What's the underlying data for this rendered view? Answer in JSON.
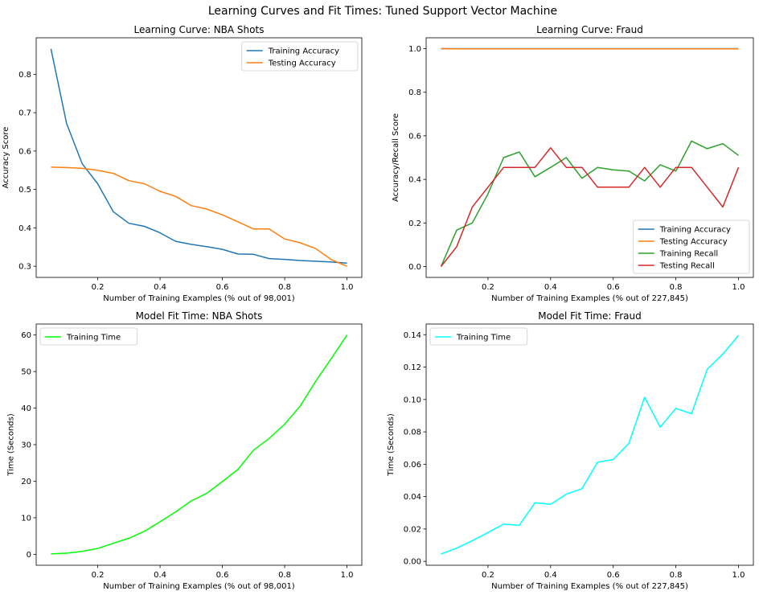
{
  "figure": {
    "title": "Learning Curves and Fit Times: Tuned Support Vector Machine"
  },
  "chart_data": [
    {
      "type": "line",
      "title": "Learning Curve: NBA Shots",
      "xlabel": "Number of Training Examples (% out of 98,001)",
      "ylabel": "Accuracy Score",
      "xlim": [
        0.0025,
        1.0475
      ],
      "ylim": [
        0.271,
        0.895
      ],
      "xticks": [
        0.2,
        0.4,
        0.6,
        0.8,
        1.0
      ],
      "xtick_labels": [
        "0.2",
        "0.4",
        "0.6",
        "0.8",
        "1.0"
      ],
      "yticks": [
        0.3,
        0.4,
        0.5,
        0.6,
        0.7,
        0.8
      ],
      "ytick_labels": [
        "0.3",
        "0.4",
        "0.5",
        "0.6",
        "0.7",
        "0.8"
      ],
      "legend": "upper right",
      "x": [
        0.05,
        0.1,
        0.15,
        0.2,
        0.25,
        0.3,
        0.35,
        0.4,
        0.45,
        0.5,
        0.55,
        0.6,
        0.65,
        0.7,
        0.75,
        0.8,
        0.85,
        0.9,
        0.95,
        1.0
      ],
      "series": [
        {
          "name": "Training Accuracy",
          "color": "#1f77b4",
          "values": [
            0.866,
            0.672,
            0.567,
            0.515,
            0.442,
            0.412,
            0.404,
            0.387,
            0.365,
            0.357,
            0.351,
            0.344,
            0.332,
            0.331,
            0.32,
            0.318,
            0.315,
            0.313,
            0.311,
            0.308
          ]
        },
        {
          "name": "Testing Accuracy",
          "color": "#ff7f0e",
          "values": [
            0.558,
            0.557,
            0.555,
            0.55,
            0.542,
            0.523,
            0.515,
            0.495,
            0.482,
            0.458,
            0.449,
            0.434,
            0.416,
            0.397,
            0.397,
            0.371,
            0.361,
            0.346,
            0.317,
            0.3
          ]
        }
      ]
    },
    {
      "type": "line",
      "title": "Learning Curve: Fraud",
      "xlabel": "Number of Training Examples (% out of 227,845)",
      "ylabel": "Accuracy/Recall Score",
      "xlim": [
        0.0025,
        1.0475
      ],
      "ylim": [
        -0.05,
        1.05
      ],
      "xticks": [
        0.2,
        0.4,
        0.6,
        0.8,
        1.0
      ],
      "xtick_labels": [
        "0.2",
        "0.4",
        "0.6",
        "0.8",
        "1.0"
      ],
      "yticks": [
        0.0,
        0.2,
        0.4,
        0.6,
        0.8,
        1.0
      ],
      "ytick_labels": [
        "0.0",
        "0.2",
        "0.4",
        "0.6",
        "0.8",
        "1.0"
      ],
      "legend": "lower right",
      "x": [
        0.05,
        0.1,
        0.15,
        0.2,
        0.25,
        0.3,
        0.35,
        0.4,
        0.45,
        0.5,
        0.55,
        0.6,
        0.65,
        0.7,
        0.75,
        0.8,
        0.85,
        0.9,
        0.95,
        1.0
      ],
      "series": [
        {
          "name": "Training Accuracy",
          "color": "#1f77b4",
          "values": [
            1.0,
            1.0,
            1.0,
            1.0,
            1.0,
            1.0,
            1.0,
            1.0,
            1.0,
            1.0,
            1.0,
            1.0,
            1.0,
            1.0,
            1.0,
            1.0,
            1.0,
            1.0,
            1.0,
            1.0
          ]
        },
        {
          "name": "Testing Accuracy",
          "color": "#ff7f0e",
          "values": [
            1.0,
            0.999,
            0.999,
            0.999,
            0.999,
            0.999,
            0.999,
            0.999,
            0.999,
            0.999,
            0.999,
            0.999,
            0.999,
            0.999,
            0.999,
            0.999,
            0.999,
            0.999,
            0.999,
            0.999
          ]
        },
        {
          "name": "Training Recall",
          "color": "#2ca02c",
          "values": [
            0.0,
            0.167,
            0.2,
            0.333,
            0.5,
            0.526,
            0.412,
            0.455,
            0.5,
            0.405,
            0.455,
            0.444,
            0.438,
            0.393,
            0.467,
            0.438,
            0.576,
            0.541,
            0.564,
            0.51
          ]
        },
        {
          "name": "Testing Recall",
          "color": "#d62728",
          "values": [
            0.0,
            0.091,
            0.273,
            0.364,
            0.455,
            0.455,
            0.455,
            0.545,
            0.455,
            0.455,
            0.364,
            0.364,
            0.364,
            0.455,
            0.364,
            0.455,
            0.455,
            0.364,
            0.273,
            0.455
          ]
        }
      ]
    },
    {
      "type": "line",
      "title": "Model Fit Time: NBA Shots",
      "xlabel": "Number of Training Examples (% out of 98,001)",
      "ylabel": "Time (Seconds)",
      "xlim": [
        0.0025,
        1.0475
      ],
      "ylim": [
        -3.0,
        63.0
      ],
      "xticks": [
        0.2,
        0.4,
        0.6,
        0.8,
        1.0
      ],
      "xtick_labels": [
        "0.2",
        "0.4",
        "0.6",
        "0.8",
        "1.0"
      ],
      "yticks": [
        0,
        10,
        20,
        30,
        40,
        50,
        60
      ],
      "ytick_labels": [
        "0",
        "10",
        "20",
        "30",
        "40",
        "50",
        "60"
      ],
      "legend": "upper left",
      "x": [
        0.05,
        0.1,
        0.15,
        0.2,
        0.25,
        0.3,
        0.35,
        0.4,
        0.45,
        0.5,
        0.55,
        0.6,
        0.65,
        0.7,
        0.75,
        0.8,
        0.85,
        0.9,
        0.95,
        1.0
      ],
      "series": [
        {
          "name": "Training Time",
          "color": "#00ff00",
          "values": [
            0.1,
            0.3,
            0.8,
            1.6,
            3.0,
            4.4,
            6.3,
            8.9,
            11.6,
            14.6,
            16.7,
            19.9,
            23.2,
            28.5,
            31.7,
            35.6,
            40.6,
            47.4,
            53.6,
            60.0
          ]
        }
      ]
    },
    {
      "type": "line",
      "title": "Model Fit Time: Fraud",
      "xlabel": "Number of Training Examples (% out of 227,845)",
      "ylabel": "Time (Seconds)",
      "xlim": [
        0.0025,
        1.0475
      ],
      "ylim": [
        -0.0024,
        0.1466
      ],
      "xticks": [
        0.2,
        0.4,
        0.6,
        0.8,
        1.0
      ],
      "xtick_labels": [
        "0.2",
        "0.4",
        "0.6",
        "0.8",
        "1.0"
      ],
      "yticks": [
        0.0,
        0.02,
        0.04,
        0.06,
        0.08,
        0.1,
        0.12,
        0.14
      ],
      "ytick_labels": [
        "0.00",
        "0.02",
        "0.04",
        "0.06",
        "0.08",
        "0.10",
        "0.12",
        "0.14"
      ],
      "legend": "upper left",
      "x": [
        0.05,
        0.1,
        0.15,
        0.2,
        0.25,
        0.3,
        0.35,
        0.4,
        0.45,
        0.5,
        0.55,
        0.6,
        0.65,
        0.7,
        0.75,
        0.8,
        0.85,
        0.9,
        0.95,
        1.0
      ],
      "series": [
        {
          "name": "Training Time",
          "color": "#00ffff",
          "values": [
            0.0045,
            0.0082,
            0.0128,
            0.0178,
            0.023,
            0.0223,
            0.0362,
            0.0352,
            0.0415,
            0.0449,
            0.0612,
            0.0629,
            0.0729,
            0.1014,
            0.0829,
            0.0945,
            0.0912,
            0.1187,
            0.128,
            0.1396
          ]
        }
      ]
    }
  ]
}
